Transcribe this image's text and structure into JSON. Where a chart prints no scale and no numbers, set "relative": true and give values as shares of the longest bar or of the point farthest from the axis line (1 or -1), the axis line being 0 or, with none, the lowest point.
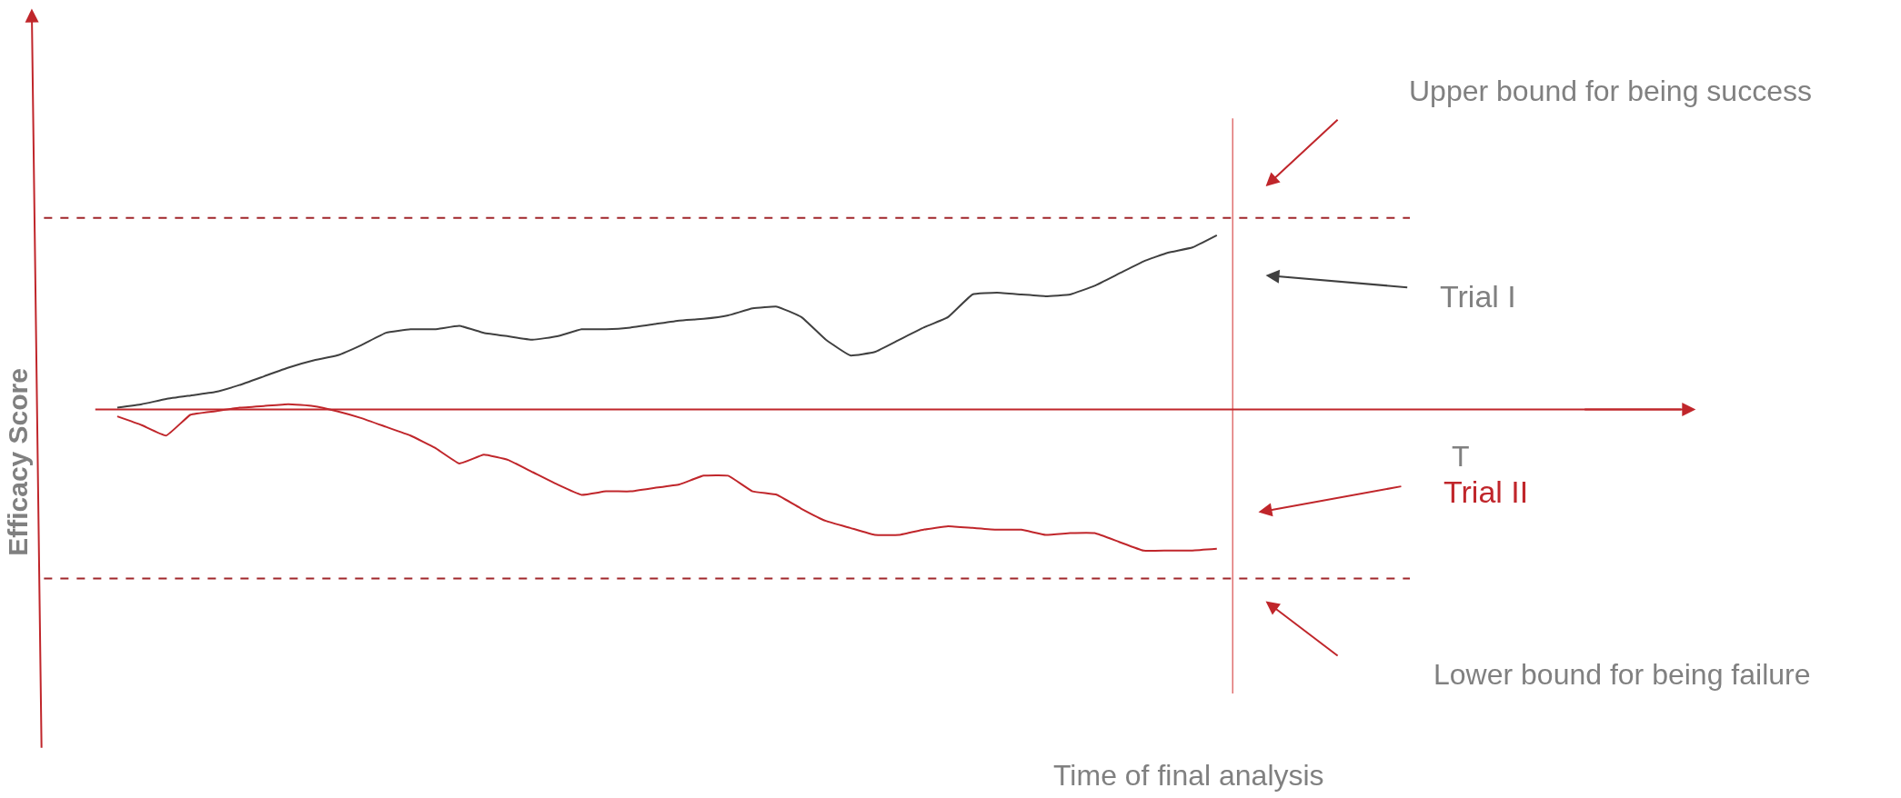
{
  "chart_data": {
    "type": "line",
    "relative": true,
    "ylabel": "Efficacy Score",
    "categories": [
      null,
      null,
      null,
      null,
      null,
      null,
      null,
      null,
      null,
      null,
      null,
      null,
      null,
      null,
      null,
      null,
      null,
      null,
      null,
      null,
      null,
      null,
      null,
      null,
      null,
      null,
      null,
      null,
      null,
      null,
      null,
      null,
      null,
      null,
      null,
      null,
      null,
      null,
      null,
      null,
      null,
      null,
      null,
      null,
      null,
      null
    ],
    "series": [
      {
        "name": "Trial I",
        "color": "#404040",
        "values": [
          0.01,
          0.03,
          0.06,
          0.08,
          0.1,
          0.14,
          0.19,
          0.24,
          0.28,
          0.31,
          0.37,
          0.44,
          0.46,
          0.46,
          0.48,
          0.44,
          0.42,
          0.4,
          0.42,
          0.46,
          0.46,
          0.47,
          0.49,
          0.51,
          0.52,
          0.54,
          0.58,
          0.59,
          0.53,
          0.4,
          0.31,
          0.33,
          0.4,
          0.47,
          0.53,
          0.66,
          0.67,
          0.66,
          0.65,
          0.66,
          0.71,
          0.78,
          0.85,
          0.9,
          0.93,
          1
        ]
      },
      {
        "name": "Trial II",
        "color": "#c0262b",
        "values": [
          -0.04,
          -0.09,
          -0.15,
          -0.03,
          -0.01,
          0.01,
          0.02,
          0.03,
          0.02,
          -0.01,
          -0.05,
          -0.1,
          -0.15,
          -0.22,
          -0.31,
          -0.26,
          -0.29,
          -0.36,
          -0.43,
          -0.49,
          -0.47,
          -0.47,
          -0.45,
          -0.43,
          -0.38,
          -0.38,
          -0.47,
          -0.49,
          -0.57,
          -0.64,
          -0.68,
          -0.72,
          -0.72,
          -0.69,
          -0.67,
          -0.68,
          -0.69,
          -0.69,
          -0.72,
          -0.71,
          -0.71,
          -0.76,
          -0.81,
          -0.81,
          -0.81,
          -0.8
        ]
      }
    ],
    "ref_lines": [
      {
        "axis": "y",
        "value": 1.1,
        "color": "#a0262b",
        "line_style": "dashed"
      },
      {
        "axis": "y",
        "value": -0.97,
        "color": "#a0262b",
        "line_style": "dashed"
      },
      {
        "axis": "y",
        "value": 0,
        "color": "#c0262b",
        "line_style": "solid"
      }
    ],
    "annotations": [
      "Upper bound for being success",
      "Lower bound for being failure",
      "Time of final analysis",
      "T"
    ],
    "legend": "right",
    "marker": "none",
    "line_style": "solid"
  }
}
